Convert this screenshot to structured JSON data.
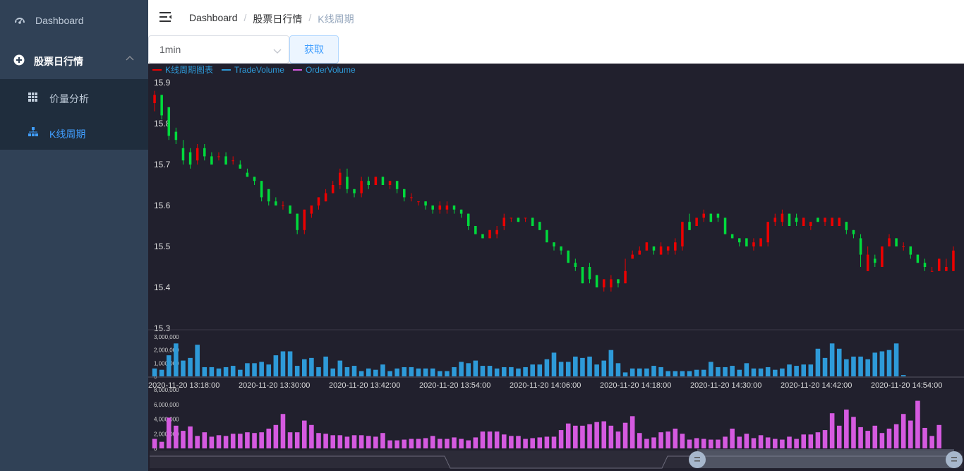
{
  "sidebar": {
    "items": [
      {
        "label": "Dashboard",
        "icon": "dashboard-icon"
      },
      {
        "label": "股票日行情",
        "icon": "plus-circle-icon"
      }
    ],
    "submenu": [
      {
        "label": "价量分析",
        "icon": "table-icon",
        "active": false
      },
      {
        "label": "K线周期",
        "icon": "tree-icon",
        "active": true
      }
    ]
  },
  "breadcrumb": [
    "Dashboard",
    "股票日行情",
    "K线周期"
  ],
  "toolbar": {
    "period_value": "1min",
    "fetch_label": "获取"
  },
  "colors": {
    "up": "#ec0000",
    "down": "#00da3c",
    "trade": "#2e9ad8",
    "order": "#d55ae0",
    "bg": "#21202d",
    "sidebar": "#304156",
    "active": "#409eff"
  },
  "chart_data": {
    "type": "candlestick",
    "legend": [
      "K线周期图表",
      "TradeVolume",
      "OrderVolume"
    ],
    "ylim": [
      15.3,
      15.9
    ],
    "yticks": [
      "15.9",
      "15.8",
      "15.7",
      "15.6",
      "15.5",
      "15.4",
      "15.3"
    ],
    "x_tick_labels": [
      "2020-11-20 13:18:00",
      "2020-11-20 13:30:00",
      "2020-11-20 13:42:00",
      "2020-11-20 13:54:00",
      "2020-11-20 14:06:00",
      "2020-11-20 14:18:00",
      "2020-11-20 14:30:00",
      "2020-11-20 14:42:00",
      "2020-11-20 14:54:00"
    ],
    "trade_volume_ticks": [
      "3,000,000",
      "2,000,000",
      "1,000,000",
      "0"
    ],
    "order_volume_ticks": [
      "8,000,000",
      "6,000,000",
      "4,000,000",
      "2,000,000",
      "0"
    ],
    "candles": [
      [
        15.85,
        15.87,
        15.83,
        15.88
      ],
      [
        15.87,
        15.82,
        15.81,
        15.87
      ],
      [
        15.84,
        15.77,
        15.76,
        15.84
      ],
      [
        15.78,
        15.76,
        15.75,
        15.79
      ],
      [
        15.74,
        15.71,
        15.7,
        15.76
      ],
      [
        15.73,
        15.7,
        15.69,
        15.74
      ],
      [
        15.71,
        15.74,
        15.7,
        15.75
      ],
      [
        15.74,
        15.72,
        15.71,
        15.75
      ],
      [
        15.72,
        15.7,
        15.7,
        15.73
      ],
      [
        15.72,
        15.72,
        15.71,
        15.73
      ],
      [
        15.72,
        15.7,
        15.7,
        15.73
      ],
      [
        15.71,
        15.71,
        15.7,
        15.72
      ],
      [
        15.7,
        15.69,
        15.69,
        15.71
      ],
      [
        15.68,
        15.67,
        15.67,
        15.69
      ],
      [
        15.67,
        15.66,
        15.65,
        15.67
      ],
      [
        15.66,
        15.62,
        15.61,
        15.66
      ],
      [
        15.64,
        15.61,
        15.6,
        15.64
      ],
      [
        15.61,
        15.6,
        15.6,
        15.62
      ],
      [
        15.6,
        15.6,
        15.59,
        15.61
      ],
      [
        15.6,
        15.58,
        15.58,
        15.6
      ],
      [
        15.58,
        15.54,
        15.53,
        15.58
      ],
      [
        15.54,
        15.59,
        15.53,
        15.59
      ],
      [
        15.58,
        15.6,
        15.57,
        15.6
      ],
      [
        15.6,
        15.62,
        15.59,
        15.62
      ],
      [
        15.61,
        15.63,
        15.61,
        15.64
      ],
      [
        15.63,
        15.65,
        15.63,
        15.66
      ],
      [
        15.65,
        15.68,
        15.64,
        15.69
      ],
      [
        15.67,
        15.64,
        15.63,
        15.69
      ],
      [
        15.64,
        15.63,
        15.62,
        15.64
      ],
      [
        15.63,
        15.66,
        15.62,
        15.67
      ],
      [
        15.66,
        15.65,
        15.64,
        15.67
      ],
      [
        15.65,
        15.67,
        15.65,
        15.67
      ],
      [
        15.67,
        15.65,
        15.65,
        15.67
      ],
      [
        15.65,
        15.66,
        15.64,
        15.66
      ],
      [
        15.66,
        15.64,
        15.63,
        15.66
      ],
      [
        15.64,
        15.62,
        15.61,
        15.64
      ],
      [
        15.62,
        15.62,
        15.61,
        15.63
      ],
      [
        15.61,
        15.61,
        15.6,
        15.61
      ],
      [
        15.61,
        15.6,
        15.59,
        15.61
      ],
      [
        15.6,
        15.59,
        15.58,
        15.6
      ],
      [
        15.59,
        15.6,
        15.58,
        15.61
      ],
      [
        15.59,
        15.6,
        15.58,
        15.61
      ],
      [
        15.6,
        15.59,
        15.58,
        15.6
      ],
      [
        15.59,
        15.58,
        15.57,
        15.59
      ],
      [
        15.58,
        15.55,
        15.54,
        15.58
      ],
      [
        15.55,
        15.53,
        15.53,
        15.55
      ],
      [
        15.53,
        15.52,
        15.52,
        15.53
      ],
      [
        15.52,
        15.54,
        15.52,
        15.54
      ],
      [
        15.53,
        15.54,
        15.52,
        15.55
      ],
      [
        15.55,
        15.57,
        15.54,
        15.58
      ],
      [
        15.57,
        15.57,
        15.56,
        15.57
      ],
      [
        15.57,
        15.56,
        15.56,
        15.57
      ],
      [
        15.57,
        15.57,
        15.56,
        15.57
      ],
      [
        15.57,
        15.55,
        15.55,
        15.57
      ],
      [
        15.56,
        15.54,
        15.54,
        15.56
      ],
      [
        15.54,
        15.51,
        15.51,
        15.54
      ],
      [
        15.51,
        15.5,
        15.49,
        15.51
      ],
      [
        15.5,
        15.49,
        15.48,
        15.5
      ],
      [
        15.49,
        15.46,
        15.46,
        15.49
      ],
      [
        15.46,
        15.45,
        15.44,
        15.47
      ],
      [
        15.45,
        15.41,
        15.41,
        15.45
      ],
      [
        15.45,
        15.42,
        15.41,
        15.46
      ],
      [
        15.43,
        15.4,
        15.4,
        15.43
      ],
      [
        15.4,
        15.42,
        15.39,
        15.42
      ],
      [
        15.4,
        15.42,
        15.39,
        15.43
      ],
      [
        15.42,
        15.41,
        15.4,
        15.42
      ],
      [
        15.41,
        15.44,
        15.41,
        15.47
      ],
      [
        15.47,
        15.48,
        15.47,
        15.49
      ],
      [
        15.48,
        15.49,
        15.48,
        15.5
      ],
      [
        15.49,
        15.51,
        15.49,
        15.51
      ],
      [
        15.5,
        15.49,
        15.48,
        15.5
      ],
      [
        15.48,
        15.5,
        15.48,
        15.51
      ],
      [
        15.49,
        15.5,
        15.48,
        15.5
      ],
      [
        15.49,
        15.51,
        15.48,
        15.52
      ],
      [
        15.5,
        15.56,
        15.49,
        15.56
      ],
      [
        15.56,
        15.54,
        15.54,
        15.58
      ],
      [
        15.55,
        15.57,
        15.55,
        15.57
      ],
      [
        15.57,
        15.58,
        15.56,
        15.59
      ],
      [
        15.58,
        15.56,
        15.56,
        15.58
      ],
      [
        15.58,
        15.57,
        15.56,
        15.58
      ],
      [
        15.57,
        15.53,
        15.53,
        15.57
      ],
      [
        15.53,
        15.52,
        15.52,
        15.53
      ],
      [
        15.52,
        15.51,
        15.5,
        15.52
      ],
      [
        15.52,
        15.5,
        15.5,
        15.52
      ],
      [
        15.5,
        15.51,
        15.49,
        15.52
      ],
      [
        15.5,
        15.52,
        15.5,
        15.52
      ],
      [
        15.51,
        15.56,
        15.5,
        15.56
      ],
      [
        15.56,
        15.57,
        15.55,
        15.58
      ],
      [
        15.56,
        15.58,
        15.55,
        15.59
      ],
      [
        15.58,
        15.55,
        15.55,
        15.58
      ],
      [
        15.57,
        15.56,
        15.55,
        15.58
      ],
      [
        15.55,
        15.57,
        15.55,
        15.57
      ],
      [
        15.55,
        15.56,
        15.54,
        15.56
      ],
      [
        15.57,
        15.56,
        15.56,
        15.57
      ],
      [
        15.56,
        15.57,
        15.55,
        15.57
      ],
      [
        15.55,
        15.57,
        15.55,
        15.57
      ],
      [
        15.55,
        15.57,
        15.55,
        15.57
      ],
      [
        15.56,
        15.54,
        15.53,
        15.56
      ],
      [
        15.54,
        15.53,
        15.52,
        15.54
      ],
      [
        15.52,
        15.48,
        15.45,
        15.53
      ],
      [
        15.44,
        15.48,
        15.44,
        15.5
      ],
      [
        15.47,
        15.46,
        15.45,
        15.48
      ],
      [
        15.45,
        15.5,
        15.45,
        15.5
      ],
      [
        15.5,
        15.52,
        15.5,
        15.53
      ],
      [
        15.52,
        15.5,
        15.5,
        15.52
      ],
      [
        15.5,
        15.5,
        15.49,
        15.51
      ],
      [
        15.5,
        15.48,
        15.47,
        15.5
      ],
      [
        15.48,
        15.46,
        15.46,
        15.48
      ],
      [
        15.46,
        15.45,
        15.44,
        15.47
      ],
      [
        15.44,
        15.44,
        15.44,
        15.45
      ],
      [
        15.44,
        15.47,
        15.44,
        15.47
      ],
      [
        15.44,
        15.45,
        15.44,
        15.47
      ],
      [
        15.44,
        15.49,
        15.44,
        15.5
      ]
    ],
    "trade_volume": [
      0.6,
      0.5,
      1.6,
      2.5,
      1.2,
      1.4,
      2.4,
      0.7,
      0.7,
      0.6,
      0.7,
      0.8,
      0.5,
      1.0,
      1.0,
      1.1,
      0.9,
      1.6,
      1.9,
      1.9,
      0.8,
      1.3,
      1.4,
      0.7,
      1.5,
      0.6,
      1.2,
      0.7,
      0.8,
      0.4,
      0.6,
      0.5,
      0.9,
      0.4,
      0.6,
      0.7,
      0.7,
      0.6,
      0.6,
      0.6,
      0.4,
      0.4,
      0.7,
      1.1,
      1.0,
      1.2,
      0.8,
      0.8,
      0.6,
      0.7,
      0.7,
      0.6,
      0.7,
      0.9,
      0.9,
      1.3,
      1.8,
      1.1,
      1.1,
      1.5,
      1.4,
      1.5,
      0.9,
      1.2,
      2.0,
      1.0,
      0.3,
      0.6,
      0.6,
      0.6,
      0.8,
      0.7,
      0.4,
      0.4,
      0.4,
      0.4,
      0.5,
      0.5,
      1.1,
      0.7,
      0.7,
      0.8,
      0.5,
      1.0,
      0.6,
      0.6,
      0.7,
      0.5,
      0.6,
      0.9,
      0.8,
      0.9,
      0.9,
      2.1,
      1.4,
      2.5,
      2.1,
      1.3,
      1.5,
      1.5,
      1.3,
      1.8,
      1.9,
      2.0,
      2.5,
      0.1
    ],
    "order_volume": [
      1.3,
      0.9,
      4.2,
      3.1,
      2.4,
      3.0,
      1.7,
      2.2,
      1.6,
      1.8,
      1.7,
      2.0,
      2.0,
      2.2,
      2.1,
      2.2,
      2.7,
      3.2,
      4.7,
      2.2,
      2.2,
      3.8,
      3.2,
      2.1,
      2.0,
      1.8,
      1.8,
      1.6,
      1.8,
      1.8,
      1.7,
      1.6,
      2.1,
      1.1,
      1.1,
      1.2,
      1.3,
      1.3,
      1.4,
      1.7,
      1.3,
      1.3,
      1.5,
      1.3,
      1.1,
      1.5,
      2.3,
      2.3,
      2.3,
      1.9,
      1.7,
      1.7,
      1.3,
      1.4,
      1.5,
      1.6,
      1.6,
      2.5,
      3.4,
      3.1,
      3.1,
      3.3,
      3.6,
      3.7,
      3.1,
      2.3,
      3.5,
      4.4,
      2.1,
      1.3,
      1.5,
      2.2,
      2.3,
      2.7,
      2.0,
      1.2,
      1.4,
      1.3,
      1.2,
      1.2,
      1.6,
      2.7,
      1.6,
      2.0,
      1.4,
      1.8,
      1.5,
      1.3,
      1.2,
      1.6,
      1.3,
      1.9,
      1.9,
      2.2,
      2.5,
      4.8,
      3.1,
      5.3,
      4.3,
      2.9,
      2.4,
      3.1,
      2.1,
      2.7,
      3.3,
      4.7,
      3.8,
      6.5,
      2.8,
      1.7,
      3.2
    ]
  }
}
